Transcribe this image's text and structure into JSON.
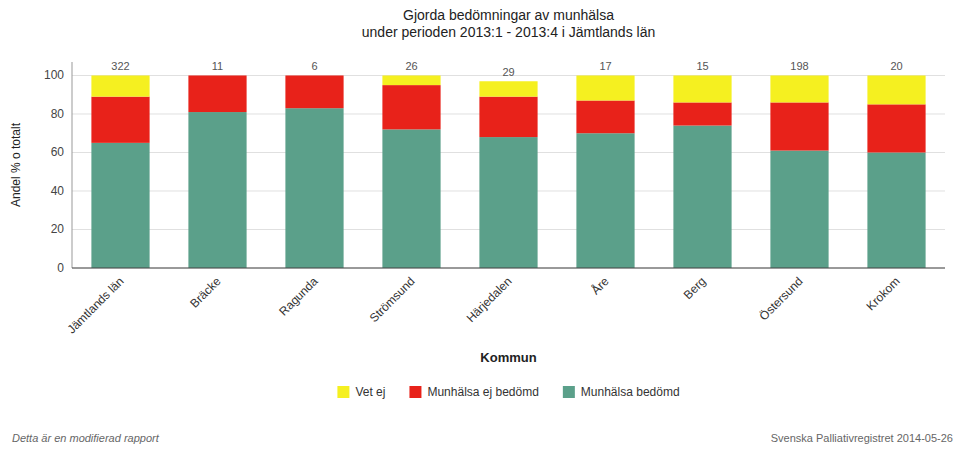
{
  "chart_data": {
    "type": "bar",
    "stacked": true,
    "title": "Gjorda bedömningar av munhälsa\nunder perioden 2013:1 - 2013:4 i Jämtlands län",
    "x_label": "Kommun",
    "y_label": "Andel % o totalt",
    "categories": [
      "Jämtlands län",
      "Bräcke",
      "Ragunda",
      "Strömsund",
      "Härjedalen",
      "Åre",
      "Berg",
      "Östersund",
      "Krokom"
    ],
    "series": [
      {
        "name": "Munhälsa bedömd",
        "color": "#5ba08a",
        "values": [
          65,
          81,
          83,
          72,
          68,
          70,
          74,
          61,
          60
        ]
      },
      {
        "name": "Munhälsa ej bedömd",
        "color": "#e8221a",
        "values": [
          24,
          19,
          17,
          23,
          21,
          17,
          12,
          25,
          25
        ]
      },
      {
        "name": "Vet ej",
        "color": "#f5f020",
        "values": [
          11,
          0,
          0,
          5,
          8,
          13,
          14,
          14,
          15
        ]
      }
    ],
    "counts": [
      322,
      11,
      6,
      26,
      29,
      17,
      15,
      198,
      20
    ],
    "ylim": [
      0,
      107
    ],
    "yticks": [
      0,
      20,
      40,
      60,
      80,
      100
    ],
    "grid": true,
    "legend": "bottom",
    "annotations": [
      "Detta är en modifierad rapport",
      "Svenska Palliativregistret 2014-05-26"
    ]
  }
}
